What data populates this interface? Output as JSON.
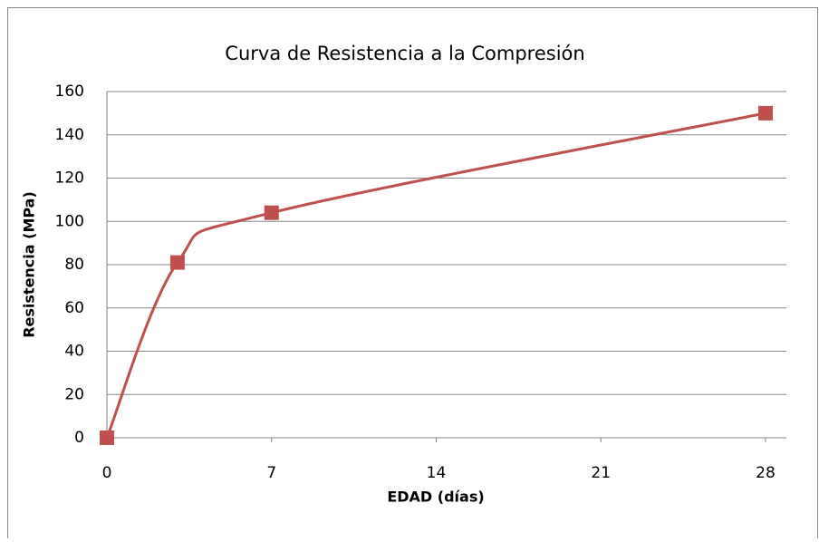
{
  "chart_data": {
    "type": "scatter",
    "title": "Curva de Resistencia a la Compresión",
    "x_label": "EDAD (días)",
    "y_label": "Resistencia (MPa)",
    "series": [
      {
        "name": "Resistencia",
        "color": "#c0504d",
        "x": [
          0,
          3,
          7,
          28
        ],
        "values": [
          0,
          81,
          104,
          150
        ]
      }
    ],
    "xlim": [
      0,
      28
    ],
    "xticks": [
      0,
      7,
      14,
      21,
      28
    ],
    "ylim": [
      0,
      160
    ],
    "yticks": [
      0,
      20,
      40,
      60,
      80,
      100,
      120,
      140,
      160
    ],
    "grid": true,
    "smooth": true
  }
}
